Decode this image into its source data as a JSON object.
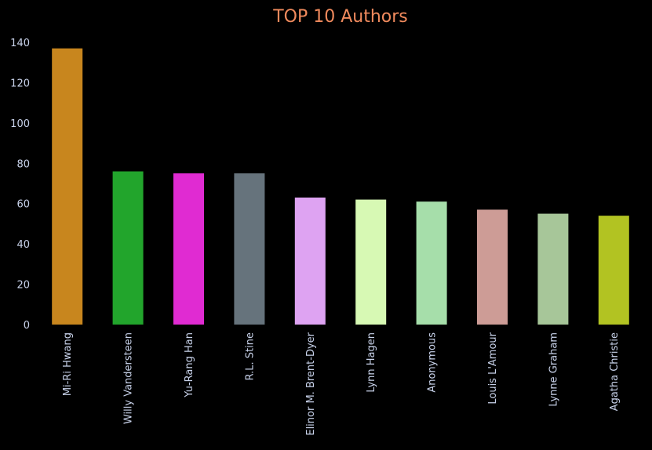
{
  "chart_data": {
    "type": "bar",
    "title": "TOP 10 Authors",
    "xlabel": "",
    "ylabel": "",
    "categories": [
      "Mi-Ri Hwang",
      "Willy Vandersteen",
      "Yu-Rang Han",
      "R.L. Stine",
      "Elinor M. Brent-Dyer",
      "Lynn Hagen",
      "Anonymous",
      "Louis L'Amour",
      "Lynne Graham",
      "Agatha Christie"
    ],
    "values": [
      137,
      76,
      75,
      75,
      63,
      62,
      61,
      57,
      55,
      54
    ],
    "colors": [
      "#c8861e",
      "#22a52c",
      "#e02bd2",
      "#66737c",
      "#dea3f2",
      "#d7f9b4",
      "#a6deaa",
      "#cd9c96",
      "#a7c699",
      "#b2c322"
    ],
    "ylim": [
      0,
      145
    ],
    "yticks": [
      0,
      20,
      40,
      60,
      80,
      100,
      120,
      140
    ],
    "grid": false,
    "legend": "none",
    "background": "#000000",
    "title_color": "#f08a5d",
    "tick_label_color": "#c8d2ea"
  }
}
